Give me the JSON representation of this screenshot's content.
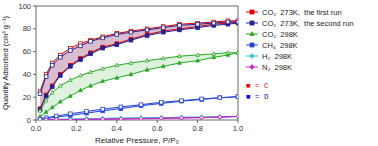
{
  "chart_data": {
    "type": "line",
    "xlabel": "Relative Pressure, P/P₀",
    "ylabel": "Quantity Adsorbed (cm³ g⁻¹)",
    "xlim": [
      0.0,
      1.0
    ],
    "ylim": [
      0,
      100
    ],
    "xticks": [
      {
        "value": 0.0,
        "label": "0.0"
      },
      0.2,
      0.4,
      0.6,
      0.8,
      {
        "value": 1.0,
        "label": "1.0"
      }
    ],
    "yticks": [
      0,
      20,
      40,
      60,
      80,
      100
    ],
    "grid": false,
    "legend": "right",
    "annotations": [
      {
        "text": "■ = C",
        "color": "red"
      },
      {
        "text": "■ = D",
        "color": "blue"
      }
    ],
    "series": [
      {
        "name": "CO₂  273K,  the first run",
        "color": "#dd0000",
        "marker": "square",
        "adsorption": {
          "x": [
            0.02,
            0.05,
            0.08,
            0.12,
            0.17,
            0.22,
            0.27,
            0.33,
            0.4,
            0.47,
            0.55,
            0.63,
            0.71,
            0.8,
            0.88,
            0.95,
            1.0
          ],
          "values": [
            10,
            22,
            30,
            40,
            48,
            54,
            59,
            64,
            67,
            71,
            75,
            78,
            80,
            82,
            84,
            85,
            86
          ]
        },
        "desorption": {
          "x": [
            1.0,
            0.95,
            0.88,
            0.8,
            0.71,
            0.63,
            0.55,
            0.47,
            0.4,
            0.33,
            0.27,
            0.22,
            0.17,
            0.12,
            0.08,
            0.05,
            0.02
          ],
          "values": [
            87,
            87,
            86,
            85,
            84,
            82,
            80,
            78,
            76,
            73,
            70,
            67,
            63,
            57,
            50,
            40,
            25
          ]
        }
      },
      {
        "name": "CO₂  273K,  the second run",
        "color": "#222299",
        "marker": "square",
        "adsorption": {
          "x": [
            0.02,
            0.05,
            0.08,
            0.12,
            0.17,
            0.22,
            0.27,
            0.33,
            0.4,
            0.47,
            0.55,
            0.63,
            0.71,
            0.8,
            0.88,
            0.95,
            1.0
          ],
          "values": [
            9,
            21,
            29,
            39,
            47,
            53,
            58,
            63,
            66,
            70,
            74,
            77,
            79,
            81,
            83,
            84,
            85
          ]
        },
        "desorption": {
          "x": [
            1.0,
            0.95,
            0.88,
            0.8,
            0.71,
            0.63,
            0.55,
            0.47,
            0.4,
            0.33,
            0.27,
            0.22,
            0.17,
            0.12,
            0.08,
            0.05,
            0.02
          ],
          "values": [
            86,
            86,
            85,
            84,
            83,
            81,
            79,
            77,
            75,
            72,
            69,
            65,
            61,
            55,
            48,
            38,
            23
          ]
        }
      },
      {
        "name": "CO₂  298K",
        "color": "#22aa22",
        "marker": "triangle",
        "adsorption": {
          "x": [
            0.02,
            0.05,
            0.08,
            0.12,
            0.17,
            0.22,
            0.27,
            0.33,
            0.4,
            0.47,
            0.55,
            0.63,
            0.71,
            0.8,
            0.88,
            0.95,
            1.0
          ],
          "values": [
            3,
            7,
            11,
            16,
            21,
            26,
            30,
            34,
            37,
            40,
            44,
            47,
            50,
            52,
            55,
            57,
            59
          ]
        },
        "desorption": {
          "x": [
            1.0,
            0.95,
            0.88,
            0.8,
            0.71,
            0.63,
            0.55,
            0.47,
            0.4,
            0.33,
            0.27,
            0.22,
            0.17,
            0.12,
            0.08,
            0.05,
            0.02
          ],
          "values": [
            59,
            59,
            58,
            57,
            56,
            54,
            52,
            50,
            48,
            45,
            42,
            39,
            35,
            30,
            24,
            17,
            8
          ]
        }
      },
      {
        "name": "CH₄  298K",
        "color": "#2244dd",
        "marker": "square",
        "adsorption": {
          "x": [
            0.02,
            0.05,
            0.1,
            0.17,
            0.25,
            0.33,
            0.42,
            0.52,
            0.62,
            0.72,
            0.82,
            0.91,
            1.0
          ],
          "values": [
            0.5,
            1.2,
            2.5,
            4.0,
            6.0,
            8.0,
            10.0,
            12.5,
            14.5,
            16.5,
            18.0,
            19.5,
            20.5
          ]
        },
        "desorption": {
          "x": [
            1.0,
            0.91,
            0.82,
            0.72,
            0.62,
            0.52,
            0.42,
            0.33,
            0.25,
            0.17,
            0.1,
            0.05,
            0.02
          ],
          "values": [
            20.5,
            19.5,
            18.5,
            17.0,
            15.5,
            13.5,
            11.5,
            9.5,
            7.5,
            5.5,
            3.5,
            2.0,
            0.8
          ]
        }
      },
      {
        "name": "H₂  298K",
        "color": "#22cccc",
        "marker": "diamond",
        "adsorption": {
          "x": [
            0.05,
            0.1,
            0.17,
            0.25,
            0.33,
            0.42,
            0.52,
            0.62,
            0.72,
            0.82,
            0.91,
            1.0
          ],
          "values": [
            0.3,
            0.5,
            0.7,
            1.0,
            1.3,
            1.5,
            1.8,
            2.0,
            2.3,
            2.5,
            2.7,
            3.0
          ]
        },
        "desorption": {
          "x": [
            1.0,
            0.91,
            0.82,
            0.72,
            0.62,
            0.52,
            0.42,
            0.33,
            0.25,
            0.17,
            0.1,
            0.05
          ],
          "values": [
            3.0,
            2.8,
            2.6,
            2.4,
            2.1,
            1.9,
            1.7,
            1.4,
            1.1,
            0.8,
            0.5,
            0.3
          ]
        }
      },
      {
        "name": "N₂  298K",
        "color": "#cc22cc",
        "marker": "diamond",
        "adsorption": {
          "x": [
            0.05,
            0.1,
            0.17,
            0.25,
            0.33,
            0.42,
            0.52,
            0.62,
            0.72,
            0.82,
            0.91,
            1.0
          ],
          "values": [
            0.1,
            0.2,
            0.3,
            0.5,
            0.7,
            0.9,
            1.1,
            1.4,
            1.7,
            2.0,
            2.5,
            3.2
          ]
        },
        "desorption": {
          "x": [
            1.0,
            0.91,
            0.82,
            0.72,
            0.62,
            0.52,
            0.42,
            0.33,
            0.25,
            0.17,
            0.1,
            0.05
          ],
          "values": [
            3.2,
            2.6,
            2.2,
            1.9,
            1.6,
            1.3,
            1.0,
            0.8,
            0.6,
            0.4,
            0.2,
            0.1
          ]
        }
      }
    ]
  }
}
